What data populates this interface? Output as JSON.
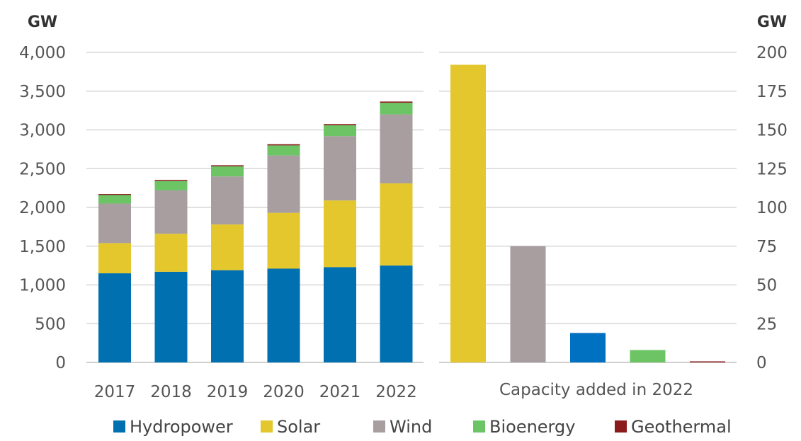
{
  "chart_data": [
    {
      "type": "bar",
      "stacked": true,
      "ylabel": "GW",
      "ylim": [
        0,
        4000
      ],
      "yticks": [
        "0",
        "500",
        "1,000",
        "1,500",
        "2,000",
        "2,500",
        "3,000",
        "3,500",
        "4,000"
      ],
      "ytick_values": [
        0,
        500,
        1000,
        1500,
        2000,
        2500,
        3000,
        3500,
        4000
      ],
      "categories": [
        "2017",
        "2018",
        "2019",
        "2020",
        "2021",
        "2022"
      ],
      "grid": true,
      "series": [
        {
          "name": "Hydropower",
          "color": "#0070B0",
          "values": [
            1150,
            1170,
            1190,
            1210,
            1230,
            1250
          ]
        },
        {
          "name": "Solar",
          "color": "#E3C72C",
          "values": [
            390,
            490,
            590,
            720,
            860,
            1060
          ]
        },
        {
          "name": "Wind",
          "color": "#A89D9F",
          "values": [
            510,
            560,
            620,
            740,
            830,
            890
          ]
        },
        {
          "name": "Bioenergy",
          "color": "#6CC465",
          "values": [
            110,
            120,
            130,
            130,
            140,
            150
          ]
        },
        {
          "name": "Geothermal",
          "color": "#8B1A1A",
          "values": [
            13,
            14,
            14,
            15,
            15,
            16
          ]
        }
      ]
    },
    {
      "type": "bar",
      "ylabel": "GW",
      "ylim": [
        0,
        200
      ],
      "yticks": [
        "0",
        "25",
        "50",
        "75",
        "100",
        "125",
        "150",
        "175",
        "200"
      ],
      "ytick_values": [
        0,
        25,
        50,
        75,
        100,
        125,
        150,
        175,
        200
      ],
      "xlabel": "Capacity added in 2022",
      "grid": true,
      "bars": [
        {
          "series": "Solar",
          "value": 192,
          "color": "#E3C72C"
        },
        {
          "series": "Wind",
          "value": 75,
          "color": "#A89D9F"
        },
        {
          "series": "Hydropower",
          "value": 19,
          "color": "#0070C0"
        },
        {
          "series": "Bioenergy",
          "value": 8,
          "color": "#6CC465"
        },
        {
          "series": "Geothermal",
          "value": 0.2,
          "color": "#8B1A1A"
        }
      ]
    }
  ],
  "legend": {
    "placement": "bottom",
    "items": [
      {
        "label": "Hydropower",
        "color": "#0070B0"
      },
      {
        "label": "Solar",
        "color": "#E3C72C"
      },
      {
        "label": "Wind",
        "color": "#A89D9F"
      },
      {
        "label": "Bioenergy",
        "color": "#6CC465"
      },
      {
        "label": "Geothermal",
        "color": "#8B1A1A"
      }
    ]
  }
}
